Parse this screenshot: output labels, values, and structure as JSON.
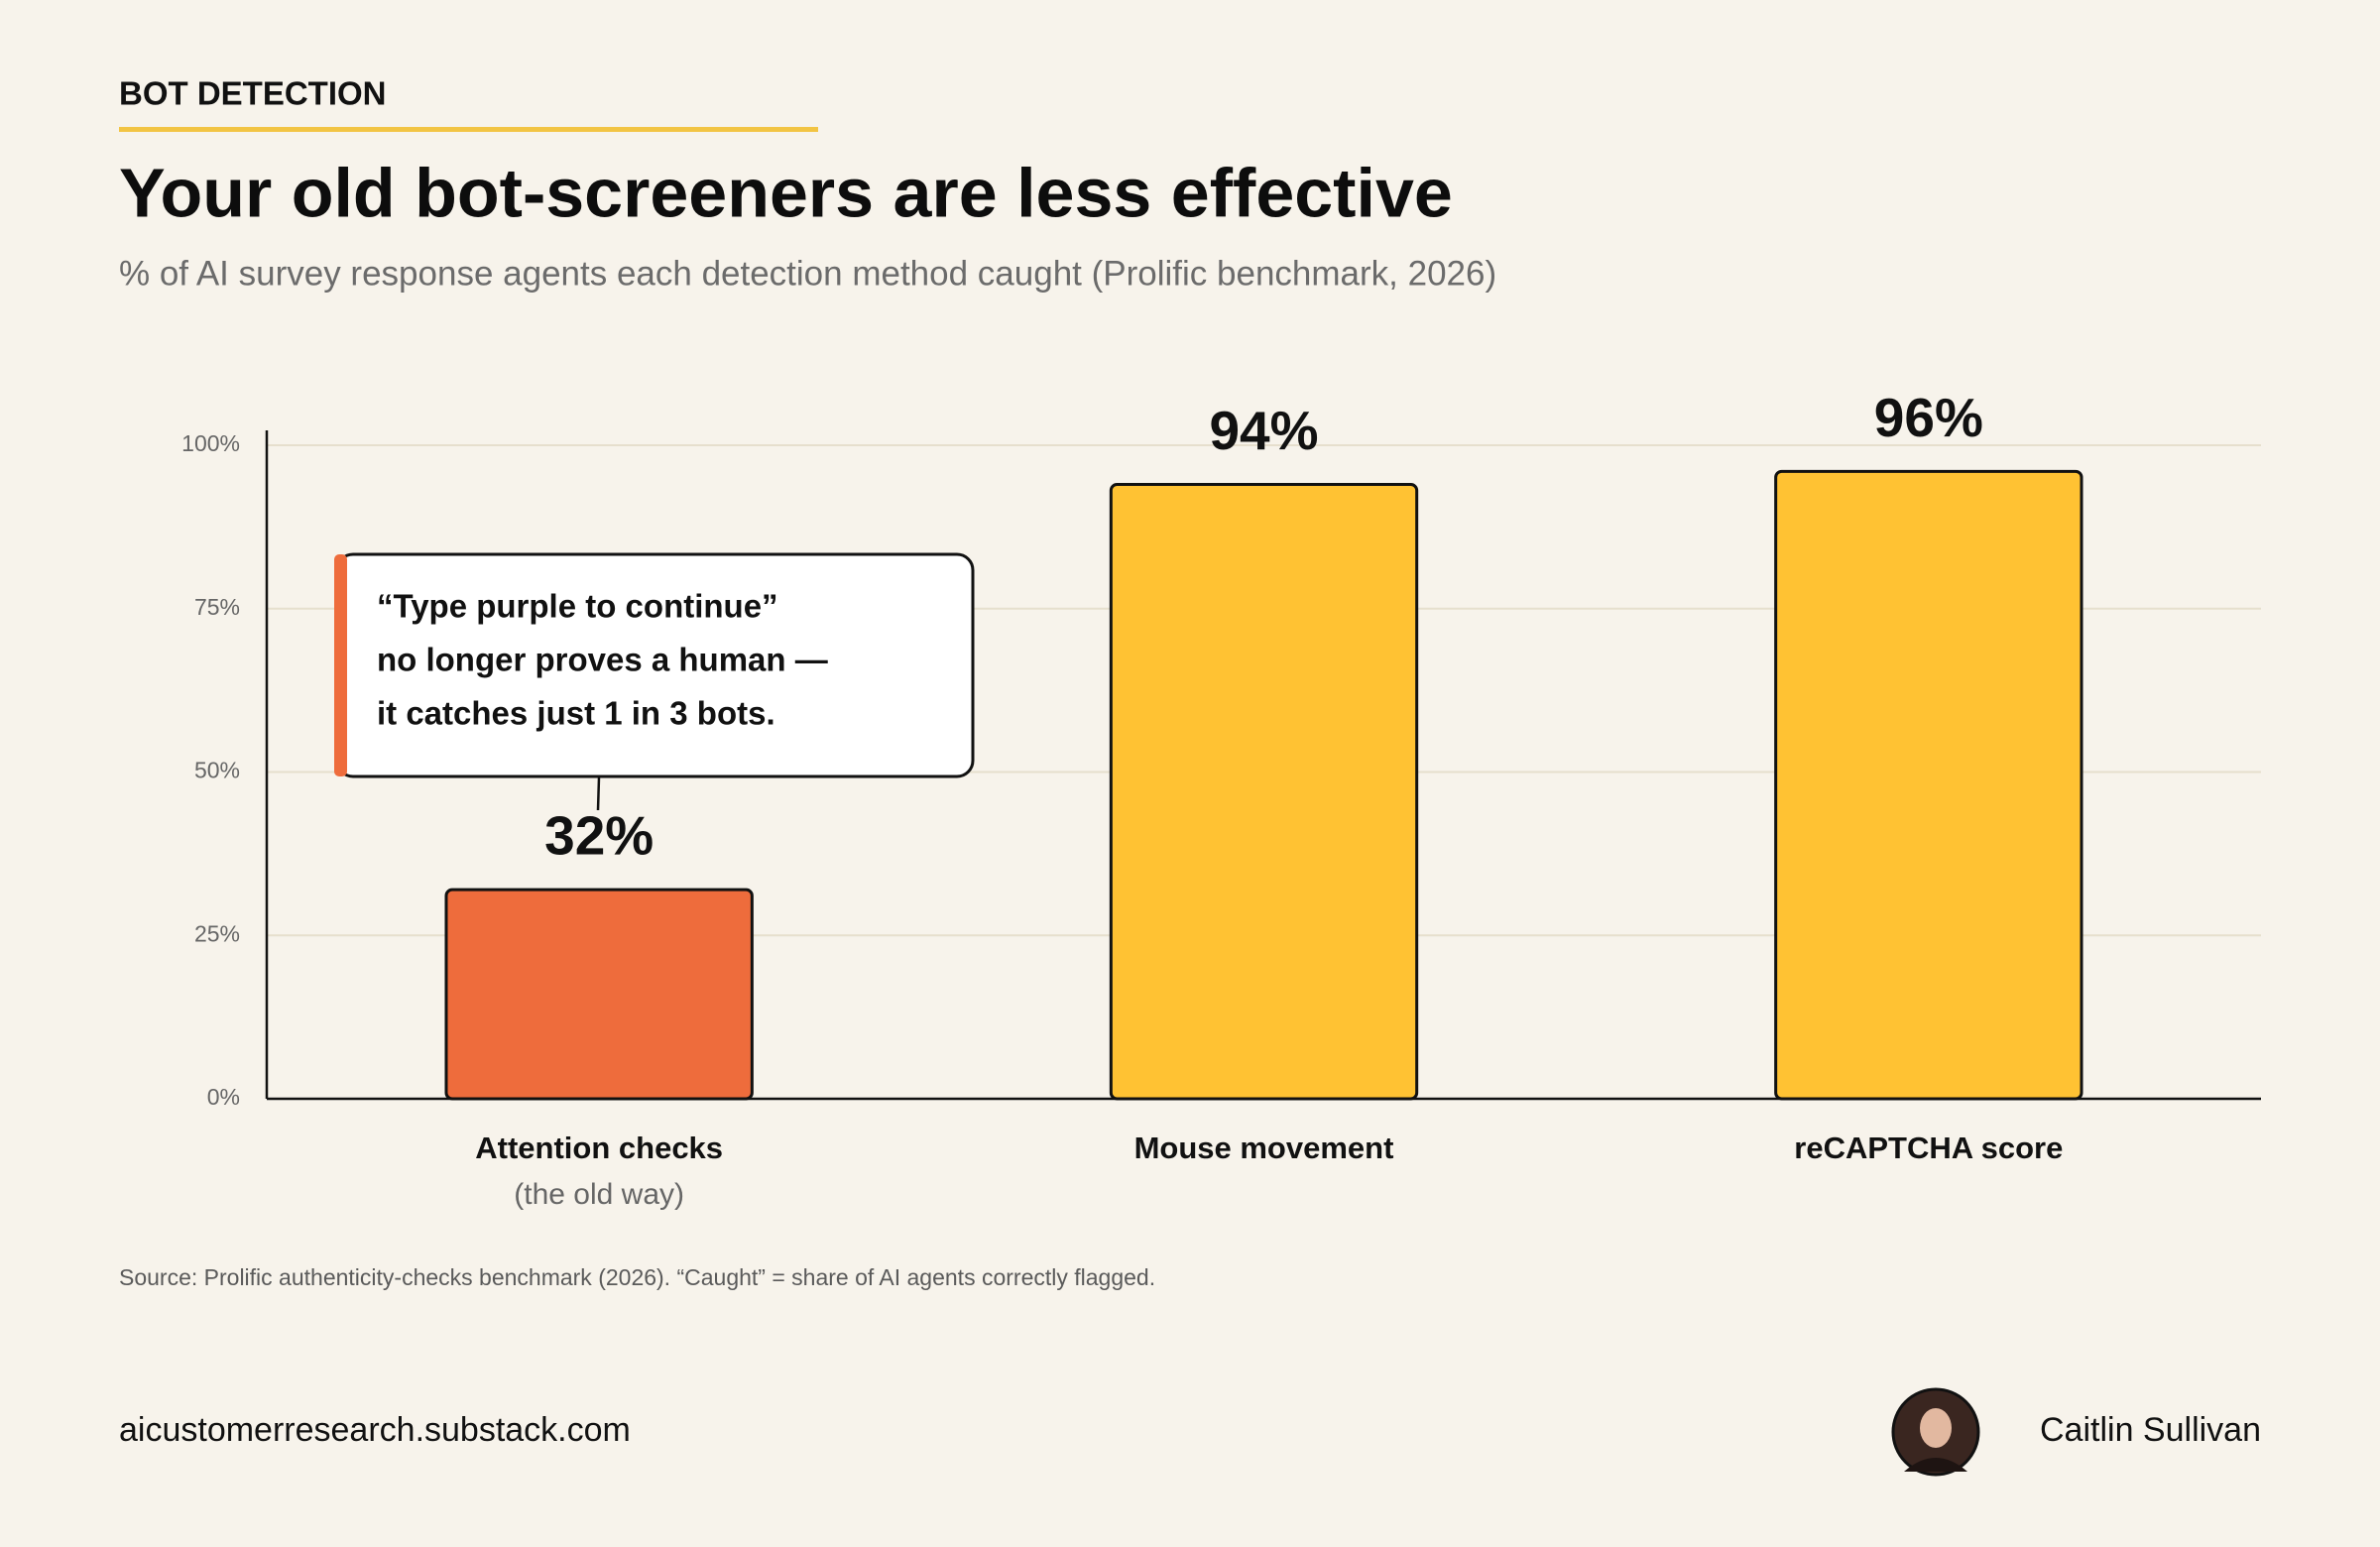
{
  "kicker": "BOT DETECTION",
  "chart_data": {
    "type": "bar",
    "title": "Your old bot-screeners are less effective",
    "subtitle": "% of AI survey response agents each detection method caught (Prolific benchmark, 2026)",
    "categories": [
      "Attention checks",
      "Mouse movement",
      "reCAPTCHA score"
    ],
    "category_notes": [
      "(the old way)",
      null,
      null
    ],
    "values": [
      32,
      94,
      96
    ],
    "value_labels": [
      "32%",
      "94%",
      "96%"
    ],
    "colors": [
      "#ee6c3c",
      "#ffc233",
      "#ffc233"
    ],
    "ylim": [
      0,
      100
    ],
    "yticks": [
      {
        "value": 0,
        "label": "0%"
      },
      {
        "value": 25,
        "label": "25%"
      },
      {
        "value": 50,
        "label": "50%"
      },
      {
        "value": 75,
        "label": "75%"
      },
      {
        "value": 100,
        "label": "100%"
      }
    ],
    "grid": true,
    "annotation": {
      "lines": [
        "“Type purple to continue”",
        "no longer proves a human —",
        "it catches just 1 in 3 bots."
      ]
    },
    "source": "Source: Prolific authenticity-checks benchmark (2026). “Caught” = share of AI agents correctly flagged."
  },
  "footer": {
    "site": "aicustomerresearch.substack.com",
    "author": "Caitlin Sullivan"
  }
}
